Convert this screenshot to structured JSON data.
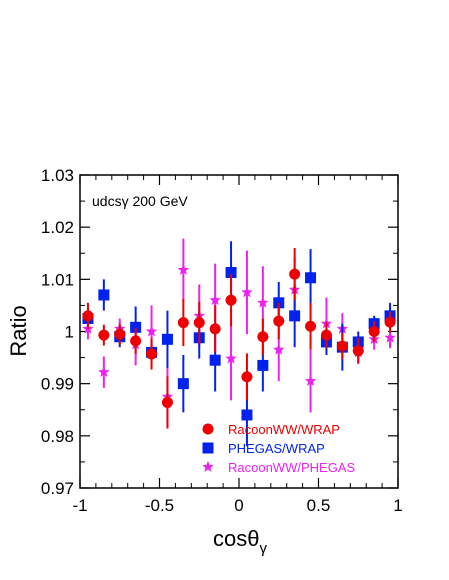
{
  "chart_data": {
    "type": "scatter",
    "title": "",
    "annotation": "udcsγ 200 GeV",
    "xlabel": "cosθγ",
    "xlabel_main": "cosθ",
    "xlabel_sub": "γ",
    "ylabel": "Ratio",
    "xlim": [
      -1,
      1
    ],
    "ylim": [
      0.97,
      1.03
    ],
    "xticks": [
      -1,
      -0.5,
      0,
      0.5,
      1
    ],
    "xtick_labels": [
      "-1",
      "-0.5",
      "0",
      "0.5",
      "1"
    ],
    "yticks": [
      0.97,
      0.98,
      0.99,
      1.0,
      1.01,
      1.02,
      1.03
    ],
    "ytick_labels": [
      "0.97",
      "0.98",
      "0.99",
      "1",
      "1.01",
      "1.02",
      "1.03"
    ],
    "grid": false,
    "legend_position": "bottom-right",
    "series": [
      {
        "name": "RacoonWW/WRAP",
        "marker": "circle",
        "color": "#ee0000",
        "x": [
          -0.95,
          -0.85,
          -0.75,
          -0.65,
          -0.55,
          -0.45,
          -0.35,
          -0.25,
          -0.15,
          -0.05,
          0.05,
          0.15,
          0.25,
          0.35,
          0.45,
          0.55,
          0.65,
          0.75,
          0.85,
          0.95
        ],
        "y": [
          1.003,
          0.9993,
          0.9995,
          0.9982,
          0.9957,
          0.9864,
          1.0017,
          1.0017,
          1.0005,
          1.006,
          0.9913,
          0.999,
          1.002,
          1.011,
          1.001,
          0.9993,
          0.9972,
          0.9963,
          1.0,
          1.0018
        ],
        "err": [
          0.0025,
          0.002,
          0.002,
          0.0025,
          0.003,
          0.005,
          0.0045,
          0.004,
          0.0045,
          0.005,
          0.0045,
          0.0035,
          0.0035,
          0.005,
          0.0045,
          0.0025,
          0.0025,
          0.0025,
          0.002,
          0.002
        ]
      },
      {
        "name": "PHEGAS/WRAP",
        "marker": "square",
        "color": "#0022ee",
        "x": [
          -0.95,
          -0.85,
          -0.75,
          -0.65,
          -0.55,
          -0.45,
          -0.35,
          -0.25,
          -0.15,
          -0.05,
          0.05,
          0.15,
          0.25,
          0.35,
          0.45,
          0.55,
          0.65,
          0.75,
          0.85,
          0.95
        ],
        "y": [
          1.0025,
          1.007,
          0.999,
          1.0008,
          0.996,
          0.9985,
          0.99,
          0.9988,
          0.9945,
          1.0113,
          0.984,
          0.9935,
          1.0055,
          1.003,
          1.0103,
          0.998,
          0.997,
          0.998,
          1.0015,
          1.003
        ],
        "err": [
          0.002,
          0.003,
          0.002,
          0.004,
          0.002,
          0.0055,
          0.0055,
          0.004,
          0.006,
          0.006,
          0.006,
          0.005,
          0.004,
          0.006,
          0.0055,
          0.0025,
          0.0045,
          0.002,
          0.0015,
          0.0025
        ]
      },
      {
        "name": "RacoonWW/PHEGAS",
        "marker": "star",
        "color": "#ee22ee",
        "x": [
          -0.95,
          -0.85,
          -0.75,
          -0.65,
          -0.55,
          -0.45,
          -0.35,
          -0.25,
          -0.15,
          -0.05,
          0.05,
          0.15,
          0.25,
          0.35,
          0.45,
          0.55,
          0.65,
          0.75,
          0.85,
          0.95
        ],
        "y": [
          1.0005,
          0.9922,
          1.0005,
          0.9975,
          1.0,
          0.9875,
          1.0118,
          1.003,
          1.006,
          0.9948,
          1.0075,
          1.0055,
          0.9965,
          1.008,
          0.9905,
          1.0015,
          1.0005,
          0.996,
          0.9985,
          0.9988
        ],
        "err": [
          0.002,
          0.003,
          0.002,
          0.004,
          0.005,
          0.006,
          0.006,
          0.006,
          0.007,
          0.008,
          0.008,
          0.007,
          0.006,
          0.006,
          0.006,
          0.005,
          0.003,
          0.002,
          0.002,
          0.002
        ]
      }
    ]
  }
}
